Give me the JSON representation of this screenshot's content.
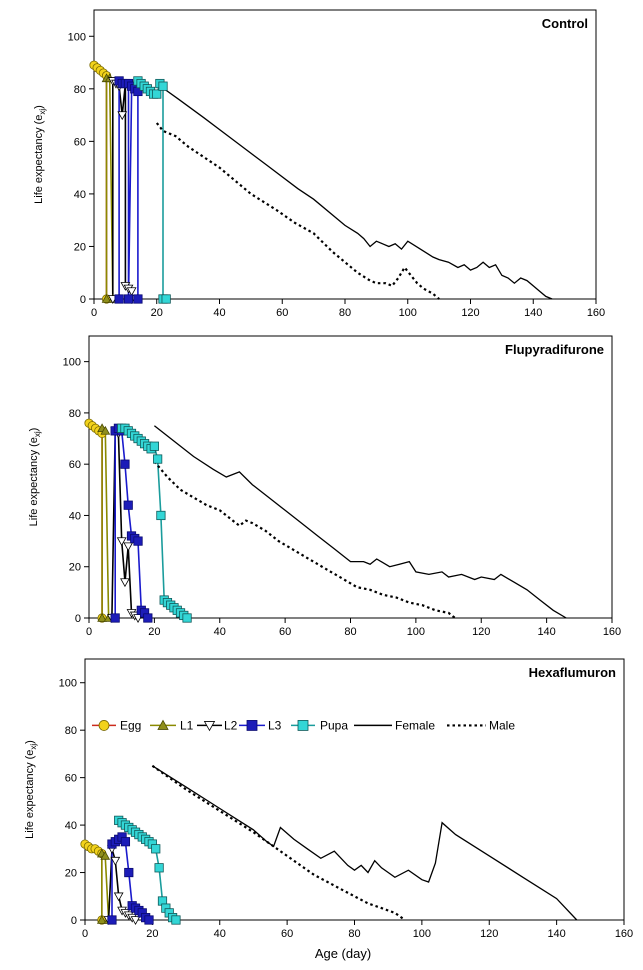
{
  "figure": {
    "xlabel": "Age (day)",
    "ylabel_main": "Life expectancy (e",
    "ylabel_sub": "xj",
    "ylabel_close": ")"
  },
  "legend": {
    "entries": [
      {
        "label": "Egg",
        "key": "egg"
      },
      {
        "label": "L1",
        "key": "l1"
      },
      {
        "label": "L2",
        "key": "l2"
      },
      {
        "label": "L3",
        "key": "l3"
      },
      {
        "label": "Pupa",
        "key": "pupa"
      },
      {
        "label": "Female",
        "key": "female"
      },
      {
        "label": "Male",
        "key": "male"
      }
    ]
  },
  "styles": {
    "egg": {
      "line": "#cc2b1d",
      "marker": "circle",
      "fill": "#f2d21b",
      "stroke": "#7a6a00"
    },
    "l1": {
      "line": "#8a8a00",
      "marker": "triangle",
      "fill": "#8f8f1c",
      "stroke": "#4a4a00"
    },
    "l2": {
      "line": "#000000",
      "marker": "tri-down",
      "fill": "#ffffff",
      "stroke": "#000000"
    },
    "l3": {
      "line": "#1a1acc",
      "marker": "square",
      "fill": "#1c1cb8",
      "stroke": "#0a0a70"
    },
    "pupa": {
      "line": "#1a9c9c",
      "marker": "square",
      "fill": "#33d6d6",
      "stroke": "#105a5a"
    },
    "female": {
      "line": "#000000",
      "dash": "none"
    },
    "male": {
      "line": "#000000",
      "dash": "2.5,3"
    }
  },
  "chart_data": [
    {
      "type": "line",
      "title": "Control",
      "xlim": [
        0,
        160
      ],
      "ylim": [
        0,
        110
      ],
      "xticks": [
        0,
        20,
        40,
        60,
        80,
        100,
        120,
        140,
        160
      ],
      "yticks": [
        0,
        20,
        40,
        60,
        80,
        100
      ],
      "legend": false,
      "series": [
        {
          "key": "egg",
          "x": [
            0,
            1,
            2,
            3,
            4,
            4
          ],
          "y": [
            89,
            88,
            87,
            86,
            85,
            0
          ]
        },
        {
          "key": "l1",
          "x": [
            4,
            4,
            5,
            6
          ],
          "y": [
            0,
            84,
            84,
            0
          ]
        },
        {
          "key": "l2",
          "x": [
            6,
            6,
            7,
            8,
            9,
            10,
            10,
            11,
            12,
            12
          ],
          "y": [
            0,
            83,
            82,
            81,
            70,
            82,
            5,
            4,
            3,
            0
          ]
        },
        {
          "key": "l3",
          "x": [
            8,
            8,
            9,
            10,
            11,
            11,
            12,
            13,
            14,
            14
          ],
          "y": [
            0,
            83,
            82,
            82,
            82,
            0,
            81,
            80,
            79,
            0
          ]
        },
        {
          "key": "pupa",
          "x": [
            14,
            15,
            16,
            17,
            18,
            19,
            20,
            21,
            22,
            22,
            23
          ],
          "y": [
            83,
            82,
            81,
            80,
            79,
            78,
            78,
            82,
            81,
            0,
            0
          ]
        },
        {
          "key": "female",
          "x": [
            20,
            27,
            35,
            45,
            55,
            65,
            70,
            80,
            84,
            86,
            88,
            90,
            92,
            94,
            96,
            98,
            100,
            104,
            108,
            110,
            113,
            116,
            118,
            120,
            122,
            124,
            126,
            128,
            130,
            132,
            134,
            136,
            138,
            140,
            142,
            144,
            146
          ],
          "y": [
            82,
            76,
            69,
            60,
            51,
            42,
            38,
            28,
            25,
            23,
            20,
            22,
            21,
            20,
            21,
            19,
            22,
            19,
            16,
            15,
            14,
            12,
            13,
            11,
            12,
            14,
            12,
            13,
            9,
            8,
            6,
            8,
            7,
            5,
            3,
            1,
            0
          ]
        },
        {
          "key": "male",
          "x": [
            20,
            22,
            26,
            30,
            40,
            50,
            58,
            64,
            70,
            76,
            80,
            84,
            88,
            90,
            93,
            95,
            97,
            99,
            101,
            103,
            105,
            108,
            110
          ],
          "y": [
            67,
            64,
            62,
            58,
            50,
            40,
            34,
            29,
            25,
            18,
            14,
            10,
            7,
            6,
            6,
            5,
            8,
            12,
            9,
            6,
            4,
            2,
            0
          ]
        }
      ]
    },
    {
      "type": "line",
      "title": "Flupyradifurone",
      "xlim": [
        0,
        160
      ],
      "ylim": [
        0,
        110
      ],
      "xticks": [
        0,
        20,
        40,
        60,
        80,
        100,
        120,
        140,
        160
      ],
      "yticks": [
        0,
        20,
        40,
        60,
        80,
        100
      ],
      "legend": false,
      "series": [
        {
          "key": "egg",
          "x": [
            0,
            1,
            2,
            3,
            4,
            4
          ],
          "y": [
            76,
            75,
            74,
            73,
            72,
            0
          ]
        },
        {
          "key": "l1",
          "x": [
            4,
            4,
            5,
            6
          ],
          "y": [
            0,
            74,
            73,
            0
          ]
        },
        {
          "key": "l2",
          "x": [
            7,
            8,
            9,
            10,
            11,
            12,
            13,
            14,
            15
          ],
          "y": [
            0,
            73,
            72,
            30,
            14,
            28,
            2,
            1,
            0
          ]
        },
        {
          "key": "l3",
          "x": [
            8,
            8,
            9,
            10,
            11,
            12,
            13,
            14,
            15,
            16,
            17,
            18
          ],
          "y": [
            0,
            73,
            74,
            73,
            60,
            44,
            32,
            31,
            30,
            3,
            2,
            0
          ]
        },
        {
          "key": "pupa",
          "x": [
            10,
            11,
            12,
            13,
            14,
            15,
            16,
            17,
            18,
            19,
            20,
            21,
            22,
            23,
            24,
            25,
            26,
            27,
            28,
            29,
            30
          ],
          "y": [
            74,
            74,
            73,
            72,
            71,
            70,
            69,
            68,
            67,
            66,
            67,
            62,
            40,
            7,
            6,
            5,
            4,
            3,
            2,
            1,
            0
          ]
        },
        {
          "key": "female",
          "x": [
            20,
            26,
            32,
            38,
            42,
            46,
            50,
            55,
            60,
            65,
            70,
            75,
            78,
            80,
            84,
            86,
            88,
            92,
            95,
            98,
            100,
            104,
            108,
            110,
            114,
            118,
            120,
            124,
            126,
            130,
            134,
            138,
            142,
            146
          ],
          "y": [
            75,
            69,
            63,
            58,
            55,
            57,
            52,
            47,
            42,
            37,
            32,
            27,
            24,
            22,
            22,
            21,
            23,
            20,
            21,
            22,
            18,
            17,
            18,
            16,
            17,
            15,
            16,
            15,
            17,
            14,
            11,
            7,
            3,
            0
          ]
        },
        {
          "key": "male",
          "x": [
            20,
            24,
            28,
            32,
            36,
            40,
            44,
            46,
            48,
            50,
            54,
            58,
            62,
            66,
            70,
            74,
            78,
            82,
            86,
            90,
            94,
            98,
            102,
            106,
            110,
            112
          ],
          "y": [
            61,
            55,
            50,
            47,
            44,
            42,
            38,
            36,
            38,
            37,
            34,
            30,
            27,
            24,
            21,
            18,
            15,
            12,
            11,
            9,
            8,
            6,
            5,
            3,
            2,
            0
          ]
        }
      ]
    },
    {
      "type": "line",
      "title": "Hexaflumuron",
      "xlim": [
        0,
        160
      ],
      "ylim": [
        0,
        110
      ],
      "xticks": [
        0,
        20,
        40,
        60,
        80,
        100,
        120,
        140,
        160
      ],
      "yticks": [
        0,
        20,
        40,
        60,
        80,
        100
      ],
      "legend": true,
      "series": [
        {
          "key": "egg",
          "x": [
            0,
            1,
            2,
            3,
            4,
            5,
            5
          ],
          "y": [
            32,
            31,
            30,
            30,
            29,
            28,
            0
          ]
        },
        {
          "key": "l1",
          "x": [
            5,
            5,
            6,
            7
          ],
          "y": [
            0,
            28,
            27,
            0
          ]
        },
        {
          "key": "l2",
          "x": [
            7,
            8,
            9,
            10,
            11,
            12,
            13,
            14,
            15
          ],
          "y": [
            0,
            30,
            25,
            10,
            4,
            3,
            2,
            1,
            0
          ]
        },
        {
          "key": "l3",
          "x": [
            8,
            8,
            9,
            10,
            11,
            12,
            13,
            14,
            15,
            16,
            17,
            18,
            19
          ],
          "y": [
            0,
            32,
            33,
            34,
            35,
            33,
            20,
            6,
            5,
            4,
            3,
            1,
            0
          ]
        },
        {
          "key": "pupa",
          "x": [
            10,
            11,
            12,
            13,
            14,
            15,
            16,
            17,
            18,
            19,
            20,
            21,
            22,
            23,
            24,
            25,
            26,
            27
          ],
          "y": [
            42,
            41,
            40,
            39,
            38,
            37,
            36,
            35,
            34,
            33,
            32,
            30,
            22,
            8,
            5,
            3,
            1,
            0
          ]
        },
        {
          "key": "female",
          "x": [
            20,
            30,
            40,
            50,
            54,
            56,
            58,
            62,
            66,
            70,
            74,
            78,
            80,
            82,
            84,
            86,
            88,
            90,
            92,
            96,
            100,
            102,
            104,
            106,
            110,
            120,
            130,
            140,
            146
          ],
          "y": [
            65,
            56,
            47,
            38,
            33,
            31,
            39,
            34,
            30,
            26,
            29,
            23,
            21,
            23,
            20,
            25,
            22,
            20,
            18,
            21,
            17,
            16,
            24,
            41,
            36,
            27,
            18,
            9,
            0
          ]
        },
        {
          "key": "male",
          "x": [
            20,
            30,
            40,
            50,
            56,
            60,
            64,
            68,
            72,
            76,
            80,
            84,
            88,
            92,
            95
          ],
          "y": [
            65,
            55,
            46,
            37,
            31,
            27,
            23,
            19,
            16,
            13,
            10,
            7,
            5,
            3,
            0
          ]
        }
      ]
    }
  ]
}
